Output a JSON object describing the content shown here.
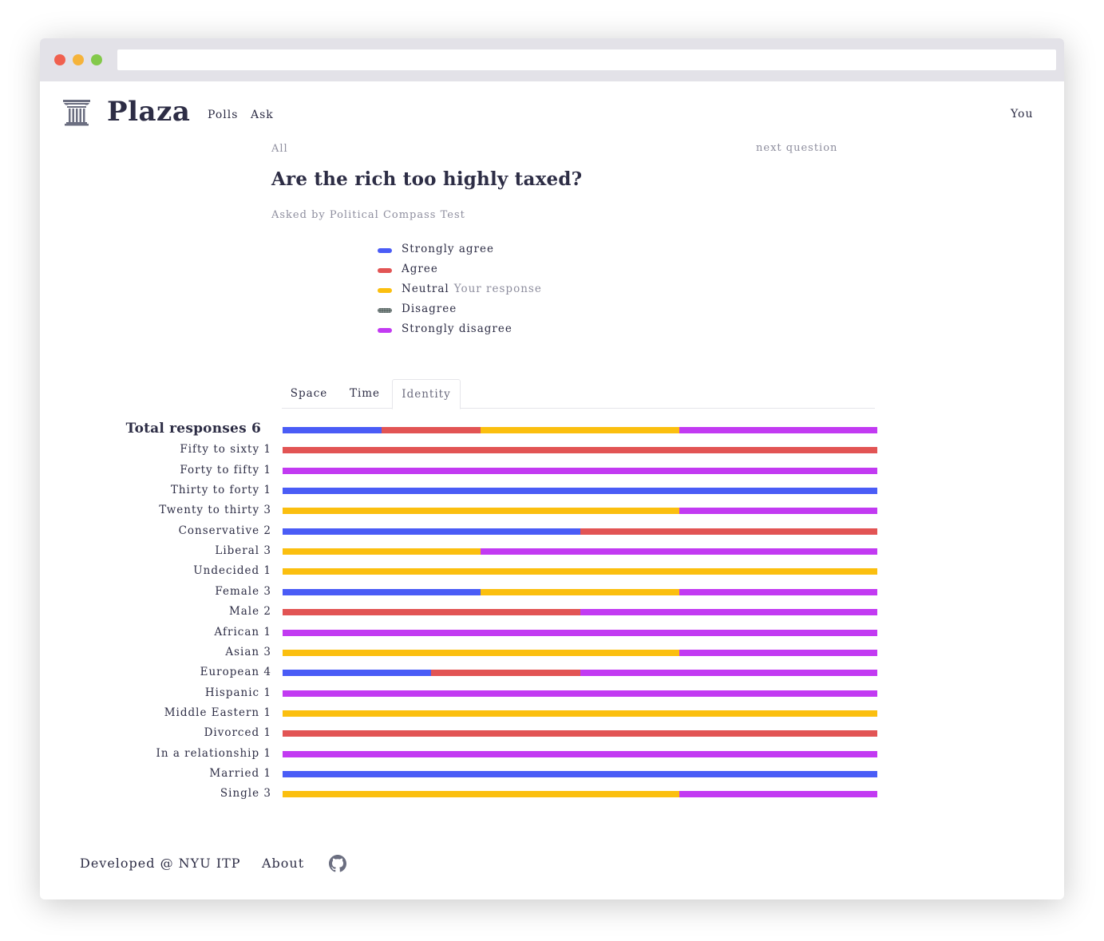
{
  "header": {
    "brand": "Plaza",
    "nav": {
      "polls": "Polls",
      "ask": "Ask",
      "you": "You"
    }
  },
  "breadcrumb": {
    "all": "All",
    "next": "next question"
  },
  "question": {
    "title": "Are the rich too highly taxed?",
    "asked_by": "Asked by Political Compass Test"
  },
  "legend": {
    "items": [
      {
        "key": "strongly_agree",
        "label": "Strongly agree",
        "color": "#4a5cf6",
        "note": ""
      },
      {
        "key": "agree",
        "label": "Agree",
        "color": "#e25454",
        "note": ""
      },
      {
        "key": "neutral",
        "label": "Neutral",
        "color": "#fbbf0f",
        "note": "Your response"
      },
      {
        "key": "disagree",
        "label": "Disagree",
        "color": "#5f6b6a",
        "note": ""
      },
      {
        "key": "strongly_disagree",
        "label": "Strongly disagree",
        "color": "#c23af2",
        "note": ""
      }
    ]
  },
  "tabs": {
    "space": "Space",
    "time": "Time",
    "identity": "Identity",
    "active": "identity"
  },
  "chart_data": {
    "type": "bar",
    "stacked": true,
    "orientation": "horizontal",
    "normalized": true,
    "categories": [
      "Total responses 6",
      "Fifty to sixty 1",
      "Forty to fifty 1",
      "Thirty to forty 1",
      "Twenty to thirty 3",
      "Conservative 2",
      "Liberal 3",
      "Undecided 1",
      "Female 3",
      "Male 2",
      "African 1",
      "Asian 3",
      "European 4",
      "Hispanic 1",
      "Middle Eastern 1",
      "Divorced 1",
      "In a relationship 1",
      "Married 1",
      "Single 3"
    ],
    "series": [
      {
        "name": "Strongly agree",
        "color": "#4a5cf6",
        "values": [
          1,
          0,
          0,
          1,
          0,
          1,
          0,
          0,
          1,
          0,
          0,
          0,
          1,
          0,
          0,
          0,
          0,
          1,
          0
        ]
      },
      {
        "name": "Agree",
        "color": "#e25454",
        "values": [
          1,
          1,
          0,
          0,
          0,
          1,
          0,
          0,
          0,
          1,
          0,
          0,
          1,
          0,
          0,
          1,
          0,
          0,
          0
        ]
      },
      {
        "name": "Neutral",
        "color": "#fbbf0f",
        "values": [
          2,
          0,
          0,
          0,
          2,
          0,
          1,
          1,
          1,
          0,
          0,
          2,
          0,
          0,
          1,
          0,
          0,
          0,
          2
        ]
      },
      {
        "name": "Disagree",
        "color": "#5f6b6a",
        "values": [
          0,
          0,
          0,
          0,
          0,
          0,
          0,
          0,
          0,
          0,
          0,
          0,
          0,
          0,
          0,
          0,
          0,
          0,
          0
        ]
      },
      {
        "name": "Strongly disagree",
        "color": "#c23af2",
        "values": [
          2,
          0,
          1,
          0,
          1,
          0,
          2,
          0,
          1,
          1,
          1,
          1,
          2,
          1,
          0,
          0,
          1,
          0,
          1
        ]
      }
    ]
  },
  "footer": {
    "developed": "Developed @ NYU ITP",
    "about": "About"
  },
  "icons": {
    "logo": "column-icon",
    "github": "github-icon"
  }
}
